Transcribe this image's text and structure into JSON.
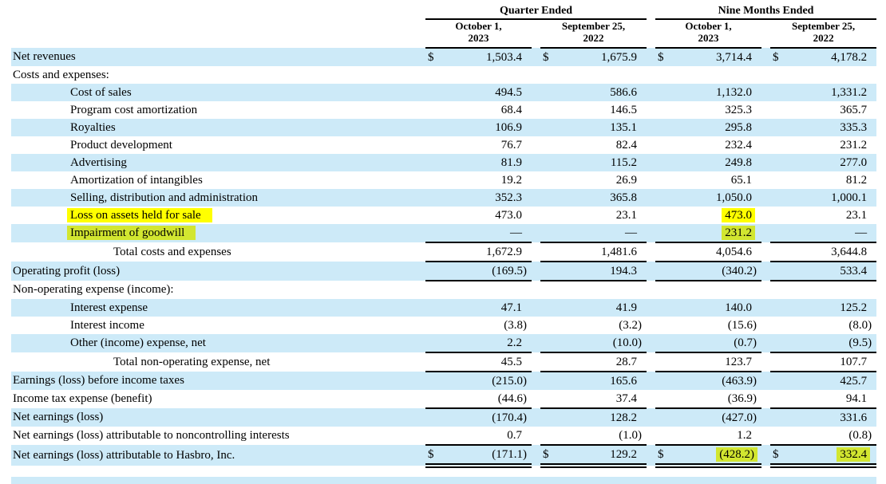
{
  "colors": {
    "stripe": "#cdeaf8",
    "highlight": "#ffff00",
    "highlight_on_stripe": "#d2e630",
    "rule": "#000000",
    "background": "#ffffff"
  },
  "document": {
    "currency_symbol": "$",
    "table": {
      "col_groups": [
        {
          "label": "Quarter Ended",
          "columns": [
            {
              "line1": "October 1,",
              "line2": "2023"
            },
            {
              "line1": "September 25,",
              "line2": "2022"
            }
          ]
        },
        {
          "label": "Nine Months Ended",
          "columns": [
            {
              "line1": "October 1,",
              "line2": "2023"
            },
            {
              "line1": "September 25,",
              "line2": "2022"
            }
          ]
        }
      ],
      "rows": [
        {
          "label": "Net revenues",
          "indent": 0,
          "stripe": true,
          "dollar": true,
          "values": [
            "1,503.4",
            "1,675.9",
            "3,714.4",
            "4,178.2"
          ]
        },
        {
          "label": "Costs and expenses:",
          "indent": 0,
          "stripe": false,
          "values": [
            "",
            "",
            "",
            ""
          ]
        },
        {
          "label": "Cost of sales",
          "indent": 1,
          "stripe": true,
          "values": [
            "494.5",
            "586.6",
            "1,132.0",
            "1,331.2"
          ]
        },
        {
          "label": "Program cost amortization",
          "indent": 1,
          "stripe": false,
          "values": [
            "68.4",
            "146.5",
            "325.3",
            "365.7"
          ]
        },
        {
          "label": "Royalties",
          "indent": 1,
          "stripe": true,
          "values": [
            "106.9",
            "135.1",
            "295.8",
            "335.3"
          ]
        },
        {
          "label": "Product development",
          "indent": 1,
          "stripe": false,
          "values": [
            "76.7",
            "82.4",
            "232.4",
            "231.2"
          ]
        },
        {
          "label": "Advertising",
          "indent": 1,
          "stripe": true,
          "values": [
            "81.9",
            "115.2",
            "249.8",
            "277.0"
          ]
        },
        {
          "label": "Amortization of intangibles",
          "indent": 1,
          "stripe": false,
          "values": [
            "19.2",
            "26.9",
            "65.1",
            "81.2"
          ]
        },
        {
          "label": "Selling, distribution and administration",
          "indent": 1,
          "stripe": true,
          "values": [
            "352.3",
            "365.8",
            "1,050.0",
            "1,000.1"
          ]
        },
        {
          "label": "Loss on assets held for sale",
          "indent": 1,
          "stripe": false,
          "hl_label": true,
          "values": [
            "473.0",
            "23.1",
            "473.0",
            "23.1"
          ],
          "hl_values": [
            false,
            false,
            true,
            false
          ]
        },
        {
          "label": "Impairment of goodwill",
          "indent": 1,
          "stripe": true,
          "hl_label": true,
          "values": [
            "—",
            "—",
            "231.2",
            "—"
          ],
          "hl_values": [
            false,
            false,
            true,
            false
          ]
        },
        {
          "label": "Total costs and expenses",
          "indent": 2,
          "stripe": false,
          "rule_top": true,
          "values": [
            "1,672.9",
            "1,481.6",
            "4,054.6",
            "3,644.8"
          ]
        },
        {
          "label": "Operating profit (loss)",
          "indent": 0,
          "stripe": true,
          "rule_top": true,
          "rule_bottom": "single",
          "values": [
            "(169.5)",
            "194.3",
            "(340.2)",
            "533.4"
          ]
        },
        {
          "label": "Non-operating expense (income):",
          "indent": 0,
          "stripe": false,
          "values": [
            "",
            "",
            "",
            ""
          ]
        },
        {
          "label": "Interest expense",
          "indent": 1,
          "stripe": true,
          "values": [
            "47.1",
            "41.9",
            "140.0",
            "125.2"
          ]
        },
        {
          "label": "Interest income",
          "indent": 1,
          "stripe": false,
          "values": [
            "(3.8)",
            "(3.2)",
            "(15.6)",
            "(8.0)"
          ]
        },
        {
          "label": "Other (income) expense, net",
          "indent": 1,
          "stripe": true,
          "rule_bottom": "single",
          "values": [
            "2.2",
            "(10.0)",
            "(0.7)",
            "(9.5)"
          ]
        },
        {
          "label": "Total non-operating expense, net",
          "indent": 2,
          "stripe": false,
          "rule_bottom": "single",
          "values": [
            "45.5",
            "28.7",
            "123.7",
            "107.7"
          ]
        },
        {
          "label": "Earnings (loss) before income taxes",
          "indent": 0,
          "stripe": true,
          "values": [
            "(215.0)",
            "165.6",
            "(463.9)",
            "425.7"
          ]
        },
        {
          "label": "Income tax expense (benefit)",
          "indent": 0,
          "stripe": false,
          "rule_bottom": "single",
          "values": [
            "(44.6)",
            "37.4",
            "(36.9)",
            "94.1"
          ]
        },
        {
          "label": "Net earnings (loss)",
          "indent": 0,
          "stripe": true,
          "values": [
            "(170.4)",
            "128.2",
            "(427.0)",
            "331.6"
          ]
        },
        {
          "label": "Net earnings (loss) attributable to noncontrolling interests",
          "indent": 0,
          "stripe": false,
          "rule_bottom": "single",
          "values": [
            "0.7",
            "(1.0)",
            "1.2",
            "(0.8)"
          ]
        },
        {
          "label": "Net earnings (loss) attributable to Hasbro, Inc.",
          "indent": 0,
          "stripe": true,
          "dollar": true,
          "rule_bottom": "double",
          "values": [
            "(171.1)",
            "129.2",
            "(428.2)",
            "332.4"
          ],
          "hl_values": [
            false,
            false,
            true,
            true
          ]
        }
      ]
    }
  }
}
